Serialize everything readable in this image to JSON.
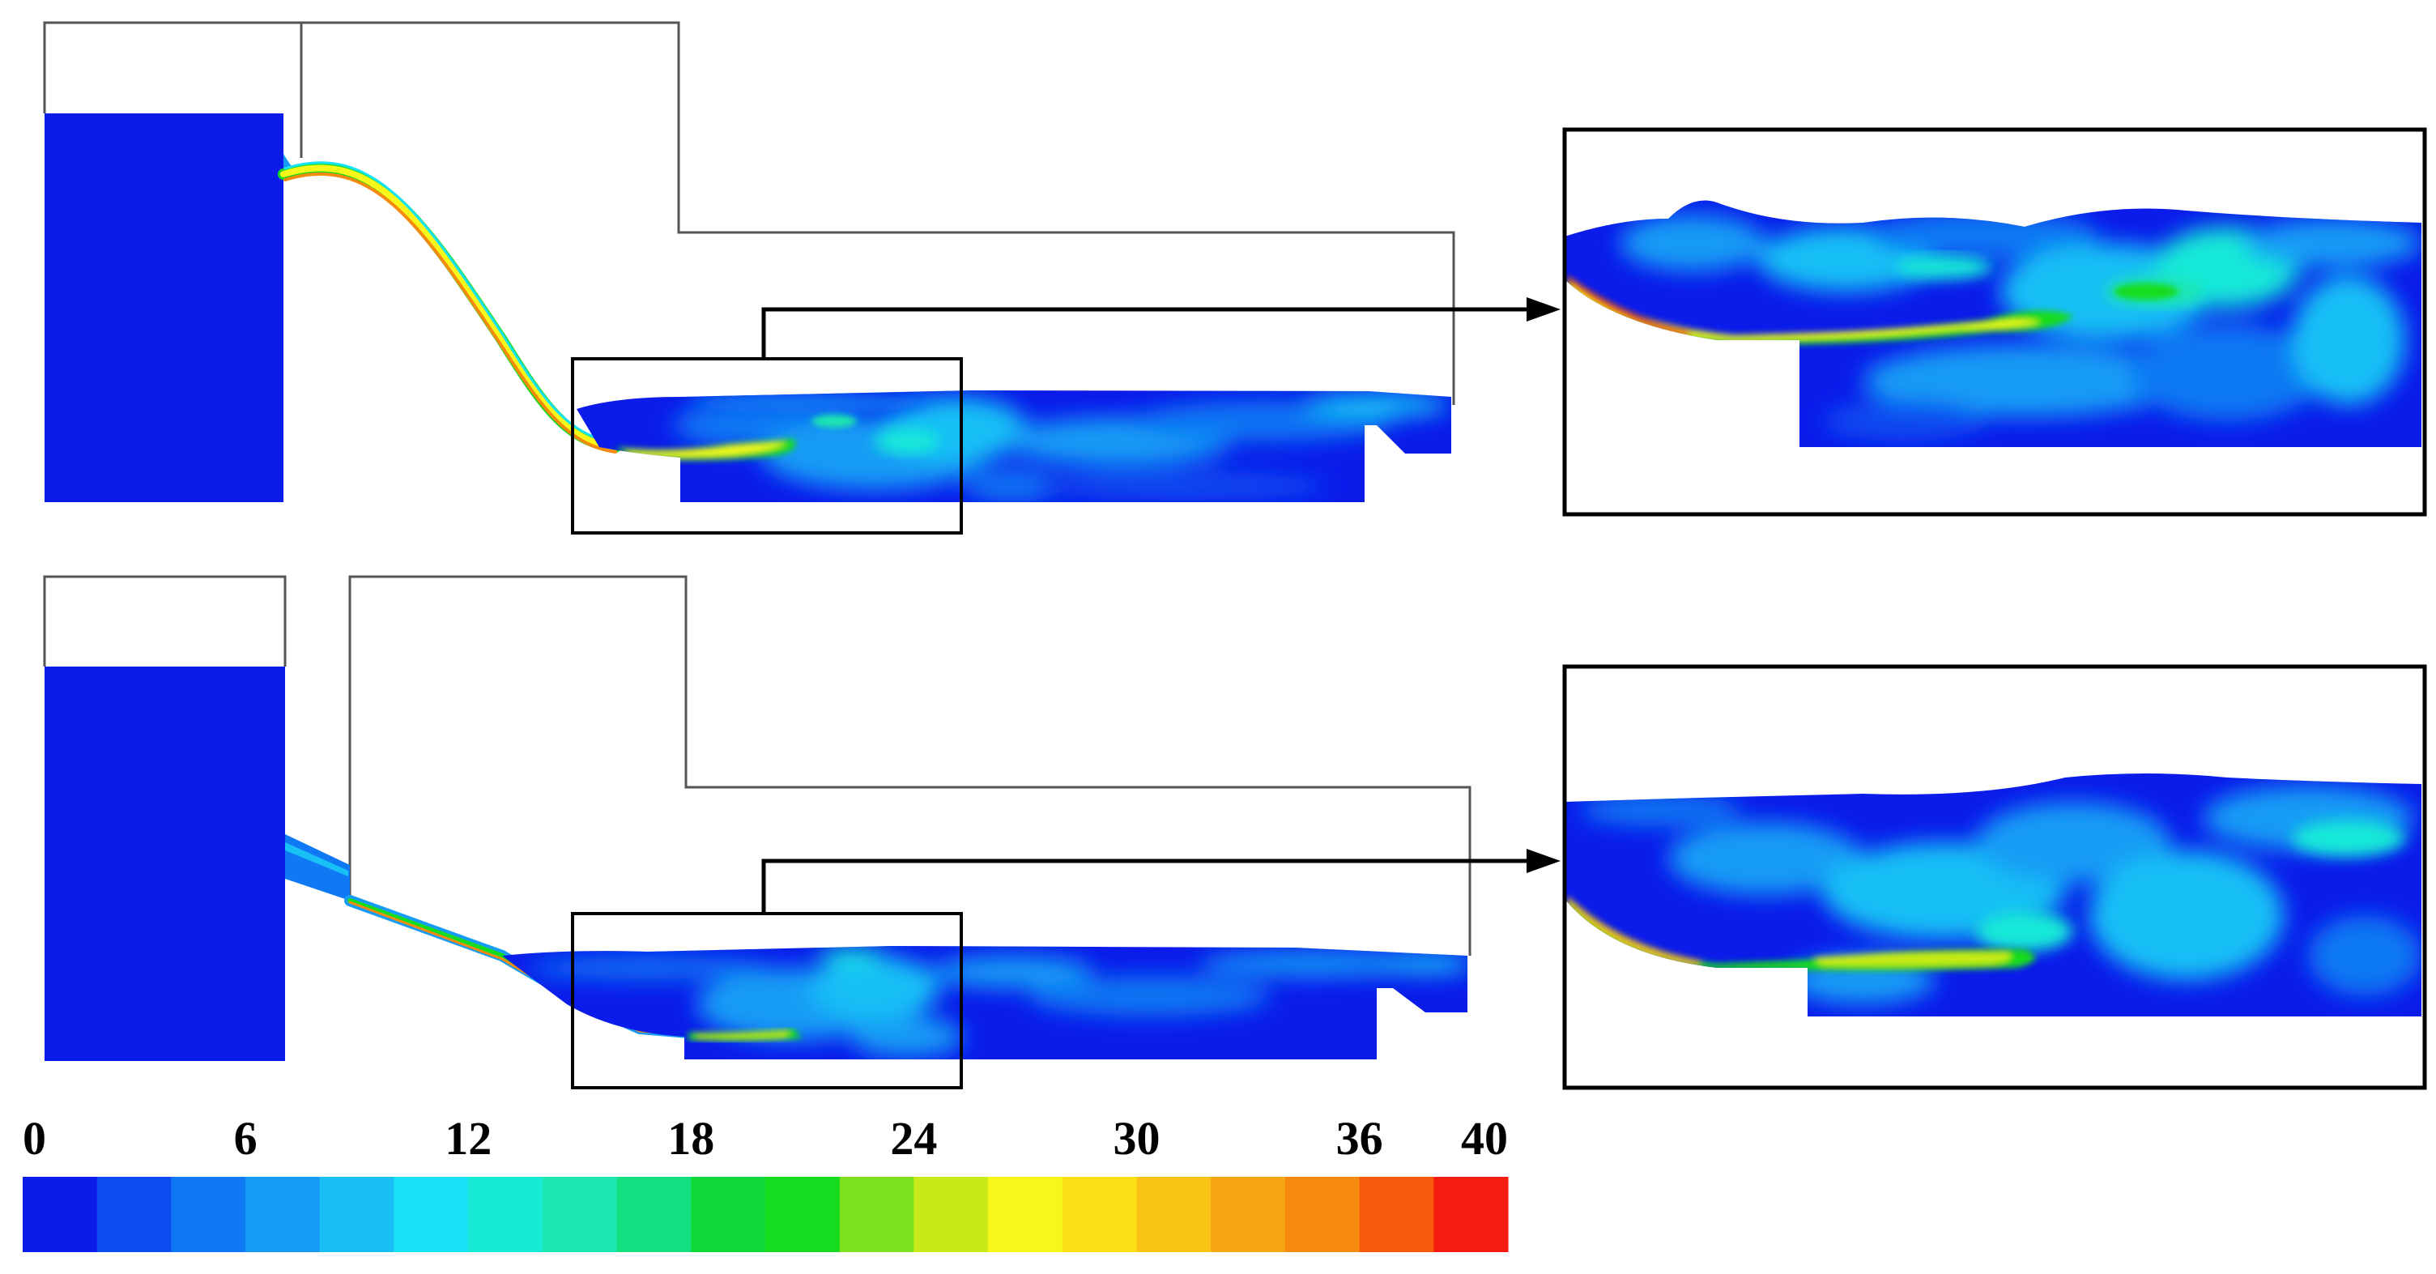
{
  "colorbar": {
    "tick_labels": [
      "0",
      "6",
      "12",
      "18",
      "24",
      "30",
      "36",
      "40"
    ],
    "tick_values": [
      0,
      6,
      12,
      18,
      24,
      30,
      36,
      40
    ],
    "min": 0,
    "max": 40,
    "bins": 20,
    "colors": [
      "#0a1bea",
      "#0b4cf0",
      "#0f78f3",
      "#169cf5",
      "#19c0f5",
      "#17e2f6",
      "#18ead8",
      "#1be6b0",
      "#13df80",
      "#0fd838",
      "#16dc1f",
      "#7ce01c",
      "#c7ea18",
      "#f8f71a",
      "#fbdf14",
      "#f8c312",
      "#f7a412",
      "#f68a0e",
      "#f75a0a",
      "#f51d12"
    ]
  },
  "panels": [
    {
      "id": "upper",
      "label": ""
    },
    {
      "id": "lower",
      "label": ""
    }
  ],
  "palette": {
    "water_base": "#0a1bea",
    "outline": "#000000",
    "domain_line": "#555555"
  }
}
